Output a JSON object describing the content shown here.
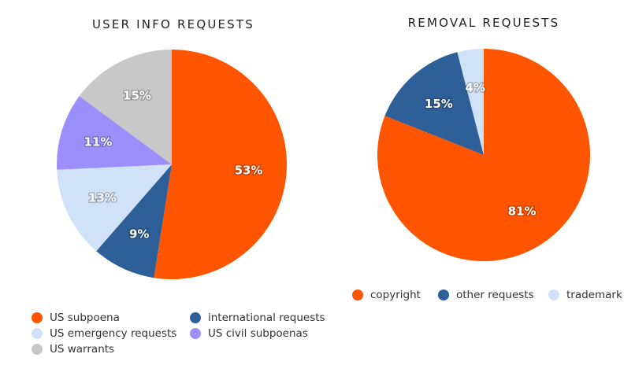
{
  "colors": {
    "orange": "#FF5500",
    "navy": "#2E5F98",
    "light_blue": "#CFE2F8",
    "lavender": "#9D8FFB",
    "gray": "#C8C8C8"
  },
  "chart_data": [
    {
      "type": "pie",
      "title": "USER INFO REQUESTS",
      "slices": [
        {
          "name": "US subpoena",
          "value": 53,
          "label": "53%",
          "color": "#FF5500"
        },
        {
          "name": "international requests",
          "value": 9,
          "label": "9%",
          "color": "#2E5F98"
        },
        {
          "name": "US emergency requests",
          "value": 13,
          "label": "13%",
          "color": "#CFE2F8"
        },
        {
          "name": "US civil subpoenas",
          "value": 11,
          "label": "11%",
          "color": "#9D8FFB"
        },
        {
          "name": "US warrants",
          "value": 15,
          "label": "15%",
          "color": "#C8C8C8"
        }
      ],
      "legend": [
        {
          "label": "US subpoena",
          "color": "#FF5500"
        },
        {
          "label": "international requests",
          "color": "#2E5F98"
        },
        {
          "label": "US emergency requests",
          "color": "#CFE2F8"
        },
        {
          "label": "US civil subpoenas",
          "color": "#9D8FFB"
        },
        {
          "label": "US warrants",
          "color": "#C8C8C8"
        }
      ],
      "legend_position": "bottom"
    },
    {
      "type": "pie",
      "title": "REMOVAL REQUESTS",
      "slices": [
        {
          "name": "copyright",
          "value": 81,
          "label": "81%",
          "color": "#FF5500"
        },
        {
          "name": "other requests",
          "value": 15,
          "label": "15%",
          "color": "#2E5F98"
        },
        {
          "name": "trademark",
          "value": 4,
          "label": "4%",
          "color": "#CFE2F8"
        }
      ],
      "legend": [
        {
          "label": "copyright",
          "color": "#FF5500"
        },
        {
          "label": "other requests",
          "color": "#2E5F98"
        },
        {
          "label": "trademark",
          "color": "#CFE2F8"
        }
      ],
      "legend_position": "bottom"
    }
  ]
}
